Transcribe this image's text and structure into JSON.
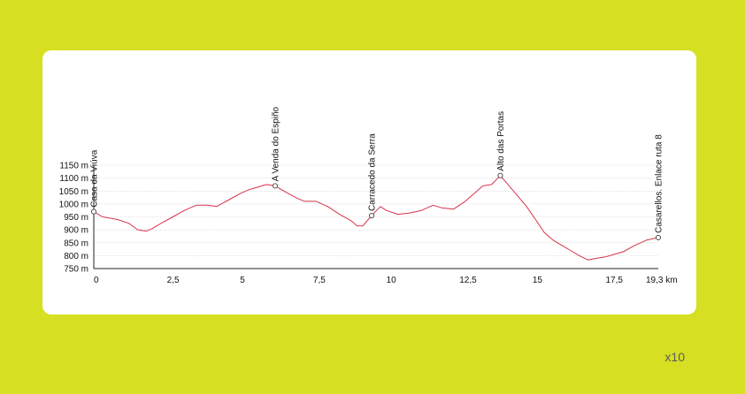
{
  "page_note": "x10",
  "chart_data": {
    "type": "line",
    "title": "",
    "xlabel": "",
    "ylabel": "",
    "xlim": [
      0,
      19.3
    ],
    "ylim": [
      750,
      1150
    ],
    "x_tick_labels": [
      {
        "x": 0,
        "label": "0"
      },
      {
        "x": 2.5,
        "label": "2,5"
      },
      {
        "x": 5,
        "label": "5"
      },
      {
        "x": 7.5,
        "label": "7,5"
      },
      {
        "x": 10,
        "label": "10"
      },
      {
        "x": 12.5,
        "label": "12,5"
      },
      {
        "x": 15,
        "label": "15"
      },
      {
        "x": 17.5,
        "label": "17,5"
      },
      {
        "x": 19.3,
        "label": "19,3 km"
      }
    ],
    "y_tick_labels": [
      {
        "y": 750,
        "label": "750 m"
      },
      {
        "y": 800,
        "label": "800 m"
      },
      {
        "y": 850,
        "label": "850 m"
      },
      {
        "y": 900,
        "label": "900 m"
      },
      {
        "y": 950,
        "label": "950 m"
      },
      {
        "y": 1000,
        "label": "1000 m"
      },
      {
        "y": 1050,
        "label": "1050 m"
      },
      {
        "y": 1100,
        "label": "1100 m"
      },
      {
        "y": 1150,
        "label": "1150 m"
      }
    ],
    "grid": true,
    "line_color": "#d9324a",
    "grid_color": "#c9c9c9",
    "series": [
      {
        "x": [
          0,
          0.3,
          0.8,
          1.2,
          1.5,
          1.8,
          2.0,
          2.3,
          2.7,
          3.1,
          3.5,
          3.9,
          4.2,
          4.6,
          5.0,
          5.3,
          5.6,
          5.9,
          6.2,
          6.5,
          6.9,
          7.2,
          7.6,
          8.0,
          8.4,
          8.8,
          9.0,
          9.2,
          9.5,
          9.8,
          10.0,
          10.4,
          10.8,
          11.2,
          11.6,
          11.9,
          12.3,
          12.7,
          13.0,
          13.3,
          13.6,
          13.9,
          14.2,
          14.5,
          14.8,
          15.1,
          15.4,
          15.7,
          16.0,
          16.3,
          16.6,
          16.9,
          17.2,
          17.5,
          17.8,
          18.1,
          18.5,
          18.9,
          19.3
        ],
        "y": [
          970,
          950,
          940,
          925,
          900,
          895,
          905,
          925,
          950,
          975,
          995,
          995,
          990,
          1015,
          1040,
          1055,
          1065,
          1075,
          1070,
          1050,
          1025,
          1010,
          1010,
          990,
          960,
          935,
          915,
          915,
          955,
          990,
          975,
          960,
          965,
          975,
          995,
          985,
          980,
          1010,
          1040,
          1070,
          1075,
          1110,
          1070,
          1030,
          990,
          940,
          890,
          860,
          840,
          820,
          800,
          783,
          790,
          795,
          805,
          815,
          840,
          860,
          870
        ]
      }
    ],
    "waypoints": [
      {
        "x": 0,
        "y": 970,
        "label": "Casa da Viúva"
      },
      {
        "x": 6.2,
        "y": 1070,
        "label": "A Venda do Espiño"
      },
      {
        "x": 9.5,
        "y": 955,
        "label": "Carracedo da Serra"
      },
      {
        "x": 13.9,
        "y": 1110,
        "label": "Alto das Portas"
      },
      {
        "x": 19.3,
        "y": 870,
        "label": "Casarellos. Enlace ruta 8"
      }
    ]
  }
}
